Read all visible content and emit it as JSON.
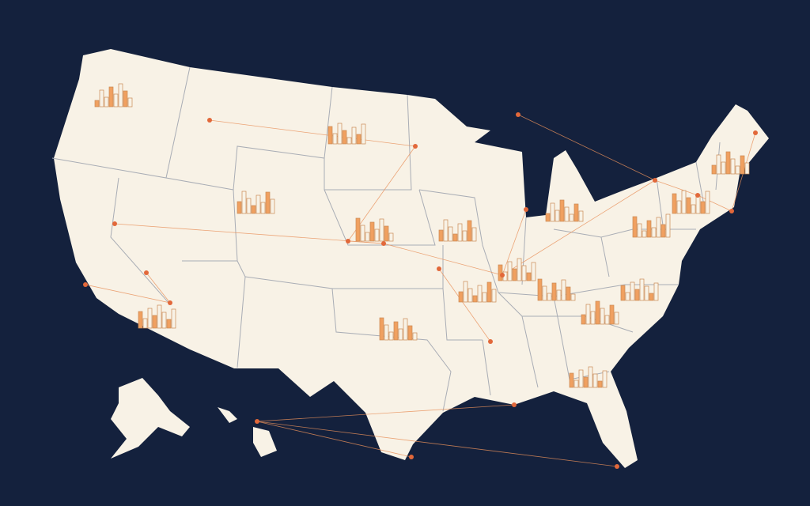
{
  "map": {
    "colors": {
      "ocean": "#14213d",
      "land": "#f8f2e6",
      "state_border": "#a9adb5",
      "skyline": "#f0a060",
      "skyline_outline": "#c98a55",
      "route": "#e8905a",
      "city_dot": "#e2683a"
    },
    "icons": [
      "city-skyline-icon",
      "city-dot-icon",
      "route-line"
    ]
  }
}
